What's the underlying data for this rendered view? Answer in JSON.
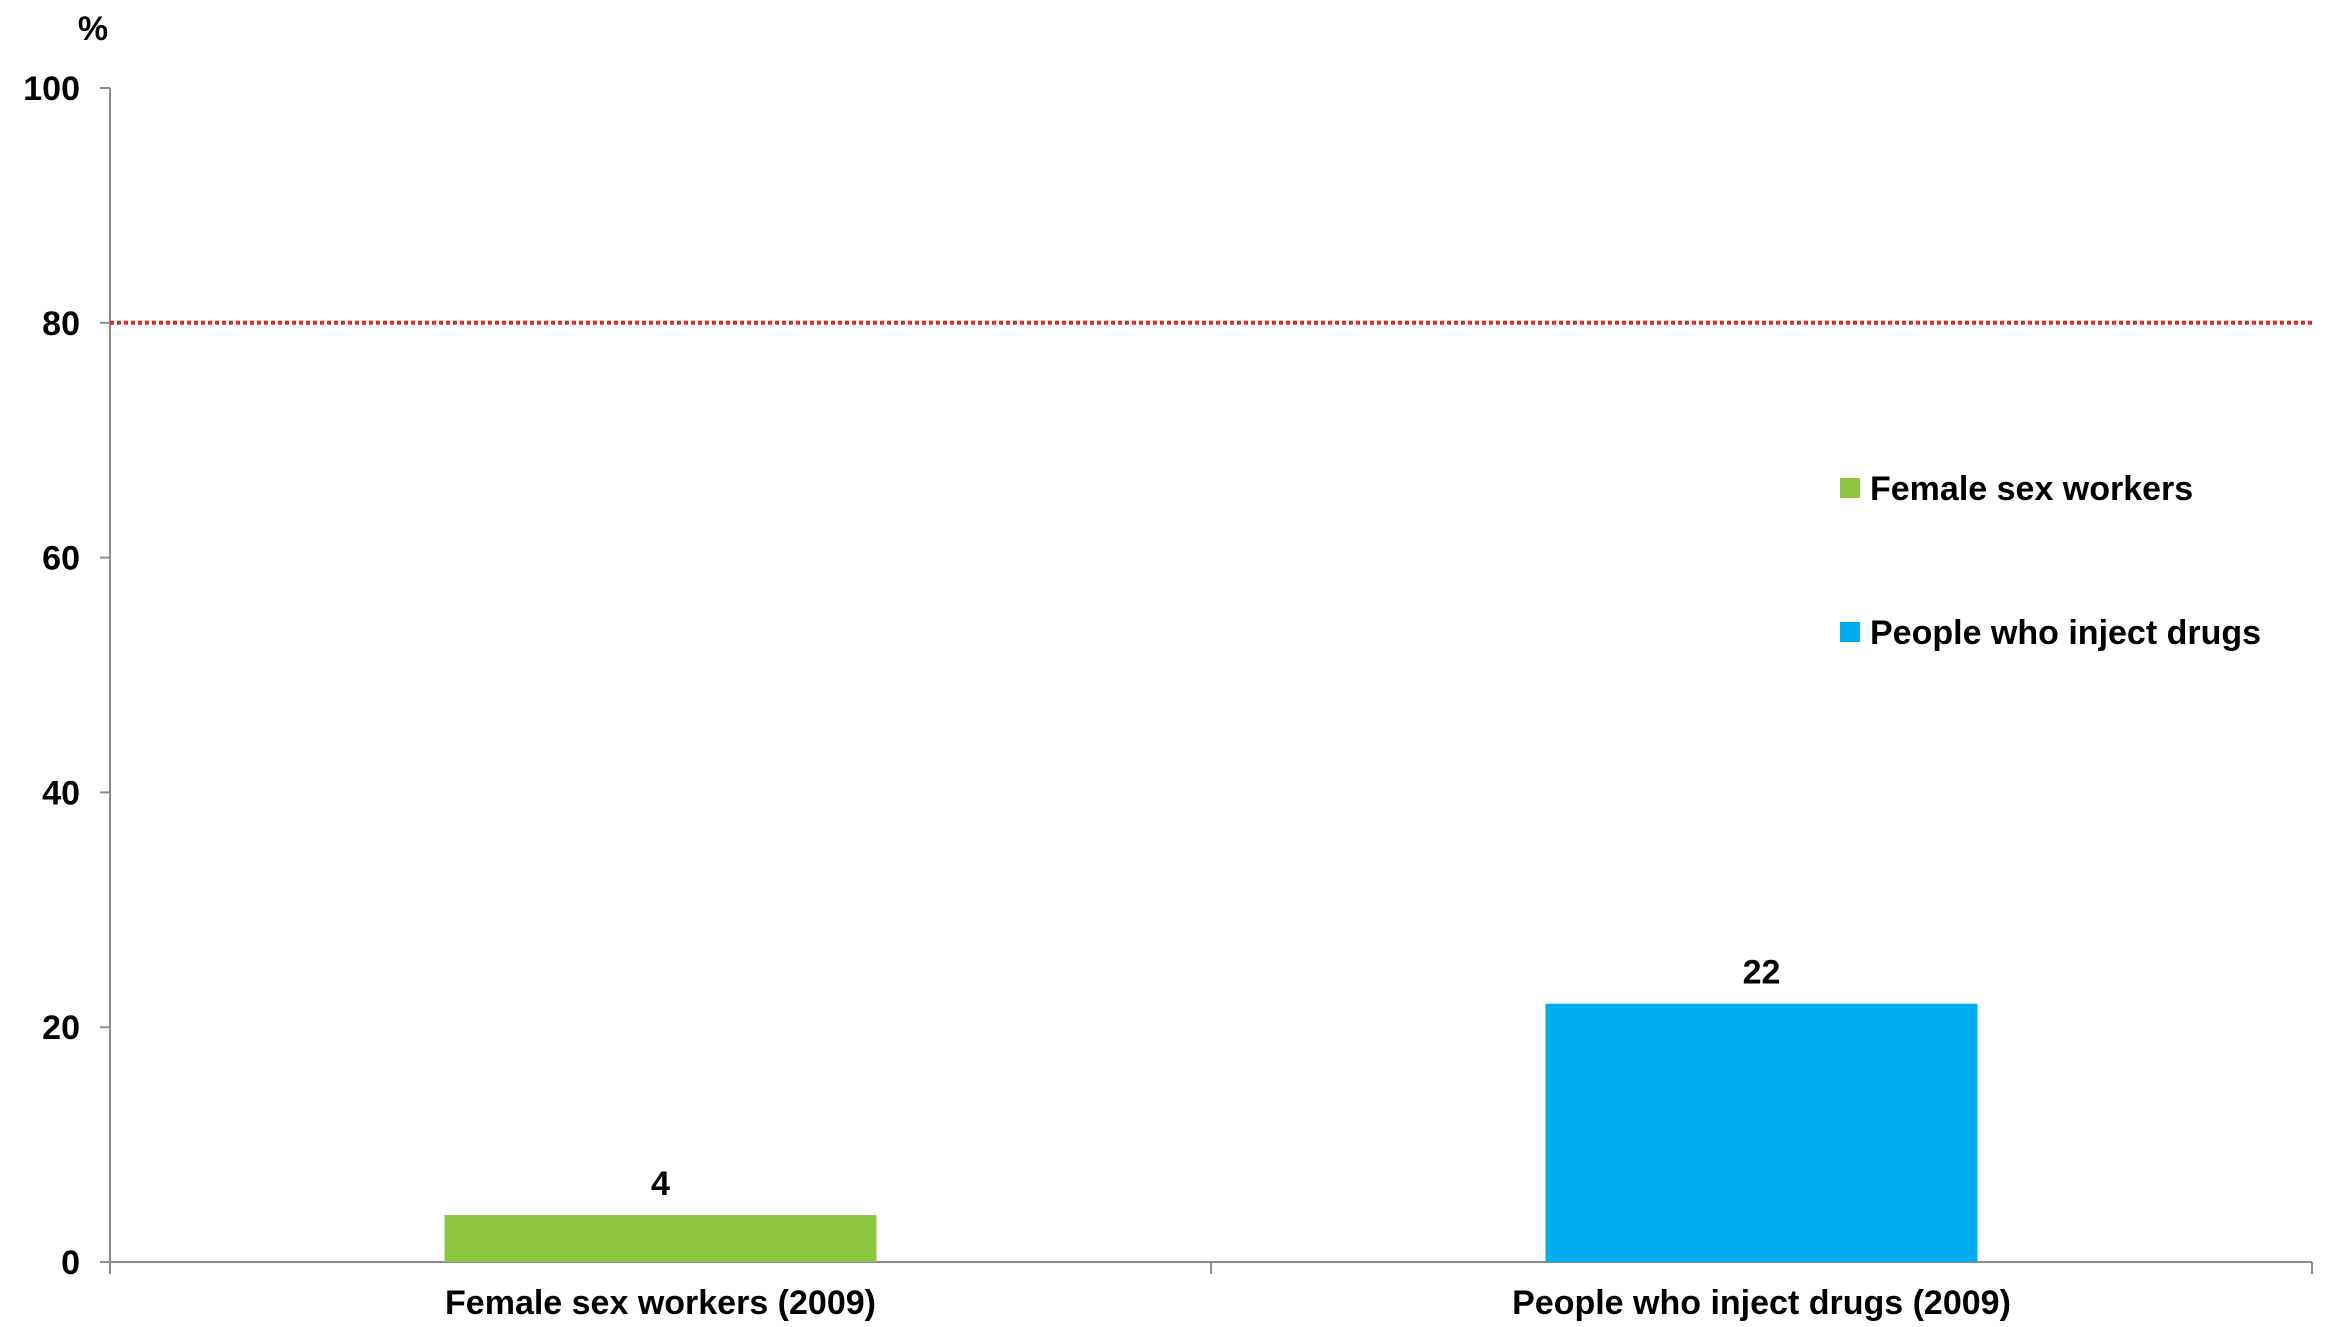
{
  "chart_data": {
    "type": "bar",
    "categories": [
      "Female sex workers (2009)",
      "People who inject drugs (2009)"
    ],
    "series": [
      {
        "name": "Female sex workers",
        "color": "#8dc63f",
        "values": [
          4,
          null
        ]
      },
      {
        "name": "People who inject drugs",
        "color": "#00aeef",
        "values": [
          null,
          22
        ]
      }
    ],
    "data_labels": [
      "4",
      "22"
    ],
    "y_unit_label": "%",
    "ylim": [
      0,
      100
    ],
    "y_ticks": [
      "0",
      "20",
      "40",
      "60",
      "80",
      "100"
    ],
    "target_line": {
      "value": 80,
      "color": "#e8262a",
      "style": "dotted"
    },
    "grid": false,
    "legend_position": "right",
    "title": "",
    "xlabel": "",
    "ylabel": ""
  }
}
